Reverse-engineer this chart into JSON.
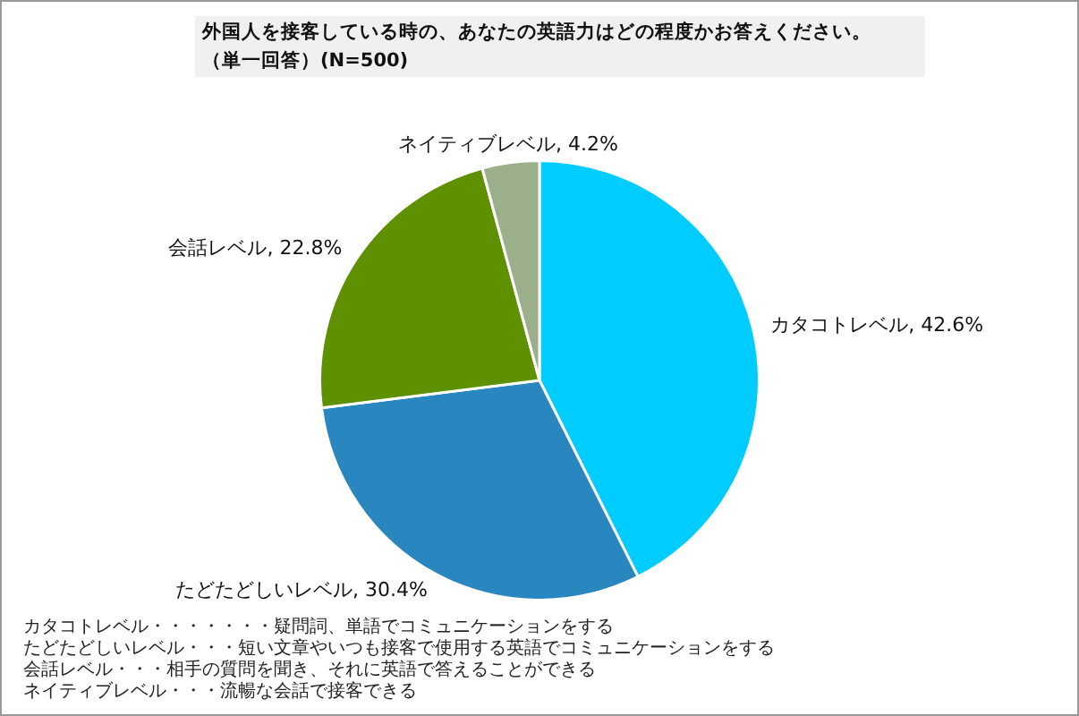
{
  "chart_data": {
    "type": "pie",
    "title": "外国人を接客している時の、あなたの英語力はどの程度かお答えください。",
    "subtitle": "（単一回答）(N=500)",
    "categories": [
      "カタコトレベル",
      "たどたどしいレベル",
      "会話レベル",
      "ネイティブレベル"
    ],
    "values": [
      42.6,
      30.4,
      22.8,
      4.2
    ],
    "value_labels": [
      "42.6%",
      "30.4%",
      "22.8%",
      "4.2%"
    ],
    "colors": [
      "#00ccff",
      "#2a86bf",
      "#5e9000",
      "#9aaf8a"
    ],
    "legend": false,
    "annotations": [
      "カタコトレベル・・・・・・・疑問詞、単語でコミュニケーションをする",
      "たどたどしいレベル・・・短い文章やいつも接客で使用する英語でコミュニケーションをする",
      "会話レベル・・・相手の質問を聞き、それに英語で答えることができる",
      "ネイティブレベル・・・流暢な会話で接客できる"
    ]
  }
}
